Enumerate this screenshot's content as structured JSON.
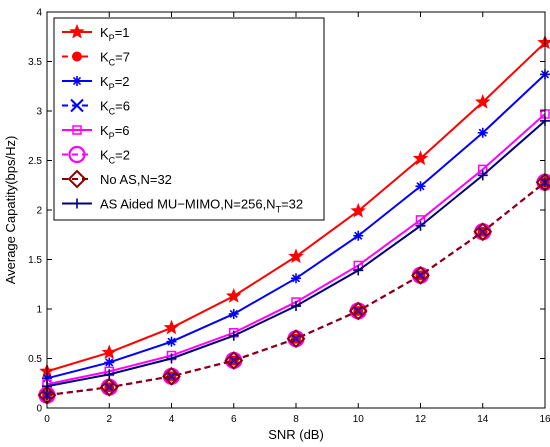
{
  "chart_data": {
    "type": "line",
    "title": "",
    "xlabel": "SNR (dB)",
    "ylabel": "Average Capatity(bps/Hz)",
    "xlim": [
      0,
      16
    ],
    "ylim": [
      0,
      4
    ],
    "xticks": [
      0,
      2,
      4,
      6,
      8,
      10,
      12,
      14,
      16
    ],
    "yticks": [
      0,
      0.5,
      1,
      1.5,
      2,
      2.5,
      3,
      3.5,
      4
    ],
    "x": [
      0,
      2,
      4,
      6,
      8,
      10,
      12,
      14,
      16
    ],
    "grid": false,
    "legend_position": "top-left",
    "series": [
      {
        "name": "K_P=1",
        "color": "#ff0000",
        "dash": "solid",
        "marker": "star",
        "values": [
          0.37,
          0.56,
          0.81,
          1.13,
          1.53,
          1.99,
          2.52,
          3.09,
          3.69
        ]
      },
      {
        "name": "K_C=7",
        "color": "#ff0000",
        "dash": "dashed",
        "marker": "dot",
        "values": [
          0.13,
          0.21,
          0.32,
          0.48,
          0.7,
          0.98,
          1.34,
          1.78,
          2.28
        ]
      },
      {
        "name": "K_P=2",
        "color": "#0000ff",
        "dash": "solid",
        "marker": "asterisk",
        "values": [
          0.3,
          0.46,
          0.67,
          0.95,
          1.31,
          1.74,
          2.24,
          2.78,
          3.37
        ]
      },
      {
        "name": "K_C=6",
        "color": "#0000ff",
        "dash": "dashed",
        "marker": "x",
        "values": [
          0.13,
          0.21,
          0.32,
          0.48,
          0.7,
          0.98,
          1.34,
          1.78,
          2.28
        ]
      },
      {
        "name": "K_P=6",
        "color": "#ff00ff",
        "dash": "solid",
        "marker": "square",
        "values": [
          0.24,
          0.37,
          0.53,
          0.76,
          1.07,
          1.44,
          1.9,
          2.41,
          2.97
        ]
      },
      {
        "name": "K_C=2",
        "color": "#ff00ff",
        "dash": "dashed",
        "marker": "circle",
        "values": [
          0.13,
          0.21,
          0.32,
          0.48,
          0.7,
          0.98,
          1.34,
          1.78,
          2.28
        ]
      },
      {
        "name": "No AS,N=32",
        "color": "#8b0000",
        "dash": "dashed",
        "marker": "diamond",
        "values": [
          0.13,
          0.21,
          0.32,
          0.48,
          0.7,
          0.98,
          1.34,
          1.78,
          2.28
        ]
      },
      {
        "name": "AS Aided MU-MIMO,N=256,N_T=32",
        "color": "#00007a",
        "dash": "solid",
        "marker": "plus",
        "values": [
          0.22,
          0.34,
          0.5,
          0.73,
          1.03,
          1.39,
          1.84,
          2.35,
          2.9
        ]
      }
    ],
    "legend_labels": [
      {
        "main": "K",
        "sub": "P",
        "rest": "=1"
      },
      {
        "main": "K",
        "sub": "C",
        "rest": "=7"
      },
      {
        "main": "K",
        "sub": "P",
        "rest": "=2"
      },
      {
        "main": "K",
        "sub": "C",
        "rest": "=6"
      },
      {
        "main": "K",
        "sub": "P",
        "rest": "=6"
      },
      {
        "main": "K",
        "sub": "C",
        "rest": "=2"
      },
      {
        "main": "No AS,N=32",
        "sub": "",
        "rest": ""
      },
      {
        "main": "AS Aided MU−MIMO,N=256,N",
        "sub": "T",
        "rest": "=32"
      }
    ]
  }
}
